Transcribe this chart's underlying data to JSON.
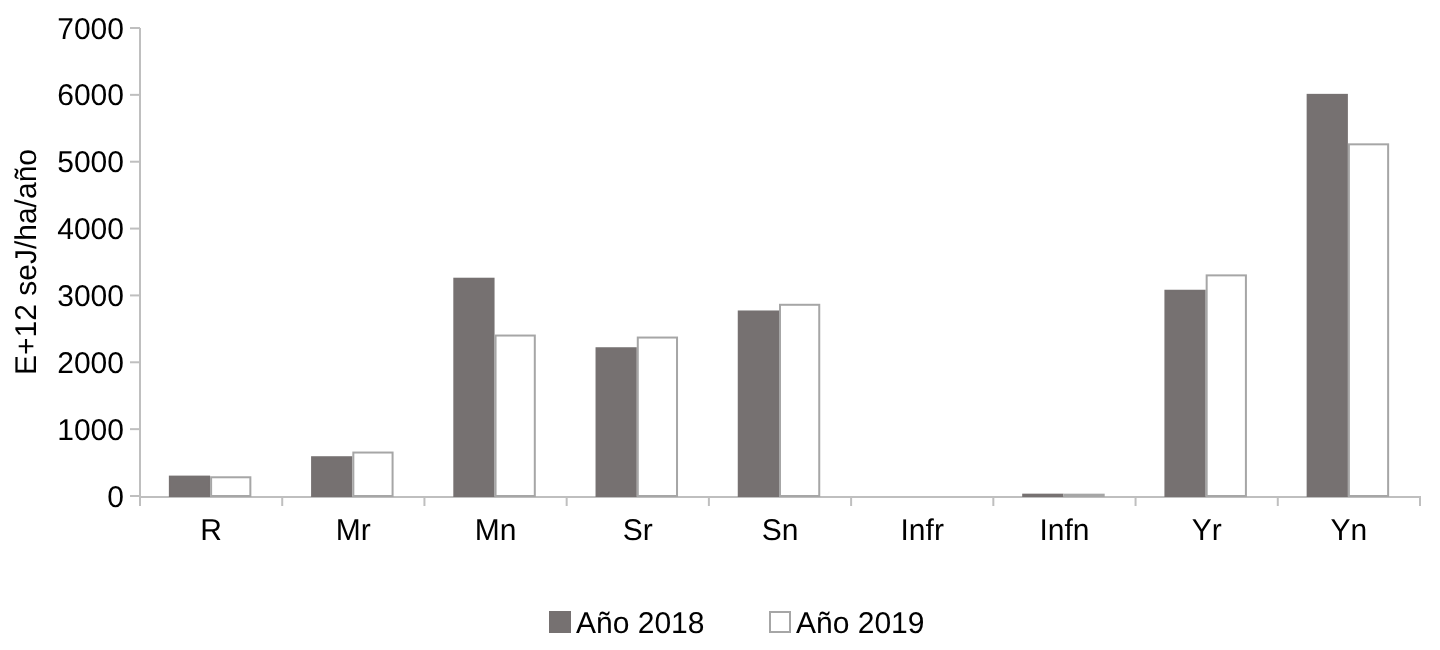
{
  "chart_data": {
    "type": "bar",
    "ylabel": "E+12 seJ/ha/año",
    "categories": [
      "R",
      "Mr",
      "Mn",
      "Sr",
      "Sn",
      "Infr",
      "Infn",
      "Yr",
      "Yn"
    ],
    "series": [
      {
        "name": "Año 2018",
        "color": "#767171",
        "values": [
          290,
          580,
          3250,
          2210,
          2760,
          0,
          20,
          3070,
          6000
        ]
      },
      {
        "name": "Año 2019",
        "color": "#ffffff",
        "values": [
          280,
          650,
          2400,
          2370,
          2860,
          0,
          20,
          3300,
          5260
        ]
      }
    ],
    "ylim": [
      0,
      7000
    ],
    "yticks": [
      0,
      1000,
      2000,
      3000,
      4000,
      5000,
      6000,
      7000
    ],
    "grid": false,
    "legend": "bottom"
  }
}
